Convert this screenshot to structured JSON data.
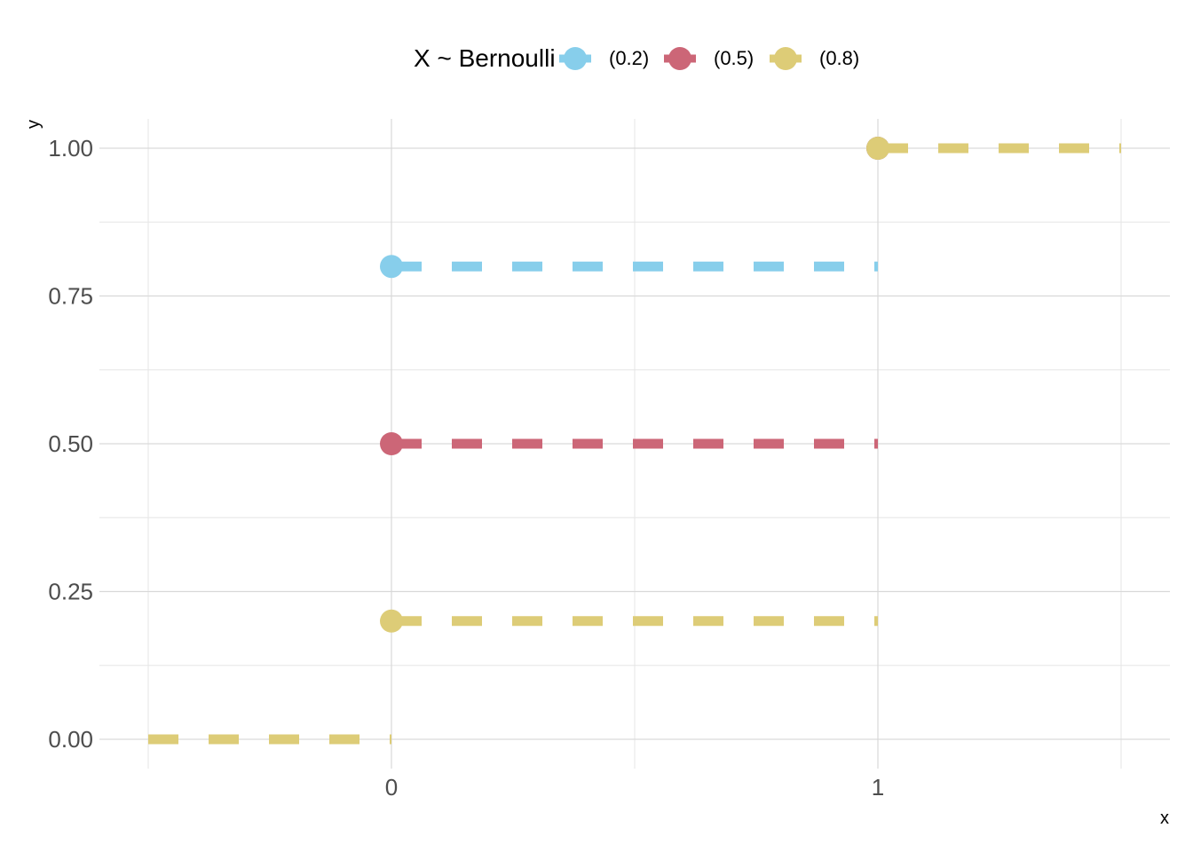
{
  "chart_data": {
    "type": "line",
    "title": "",
    "xlabel": "x",
    "ylabel": "y",
    "legend": {
      "title": "X ~ Bernoulli",
      "position": "top"
    },
    "x_ticks": [
      0,
      1
    ],
    "y_ticks": [
      0.0,
      0.25,
      0.5,
      0.75,
      1.0
    ],
    "y_tick_labels": [
      "0.00",
      "0.25",
      "0.50",
      "0.75",
      "1.00"
    ],
    "xlim": [
      -0.5,
      1.5
    ],
    "ylim": [
      0,
      1
    ],
    "grid": true,
    "line_style": "dashed",
    "series": [
      {
        "name": "(0.2)",
        "color": "#87CEEB",
        "segments": [
          {
            "x_start": -0.5,
            "x_end": 0,
            "y": 0
          },
          {
            "x_start": 0,
            "x_end": 1,
            "y": 0.8
          },
          {
            "x_start": 1,
            "x_end": 1.5,
            "y": 1
          }
        ],
        "points": [
          {
            "x": 0,
            "y": 0.8
          },
          {
            "x": 1,
            "y": 1
          }
        ]
      },
      {
        "name": "(0.5)",
        "color": "#CC6677",
        "segments": [
          {
            "x_start": -0.5,
            "x_end": 0,
            "y": 0
          },
          {
            "x_start": 0,
            "x_end": 1,
            "y": 0.5
          },
          {
            "x_start": 1,
            "x_end": 1.5,
            "y": 1
          }
        ],
        "points": [
          {
            "x": 0,
            "y": 0.5
          },
          {
            "x": 1,
            "y": 1
          }
        ]
      },
      {
        "name": "(0.8)",
        "color": "#DDCC77",
        "segments": [
          {
            "x_start": -0.5,
            "x_end": 0,
            "y": 0
          },
          {
            "x_start": 0,
            "x_end": 1,
            "y": 0.2
          },
          {
            "x_start": 1,
            "x_end": 1.5,
            "y": 1
          }
        ],
        "points": [
          {
            "x": 0,
            "y": 0.2
          },
          {
            "x": 1,
            "y": 1
          }
        ]
      }
    ]
  }
}
